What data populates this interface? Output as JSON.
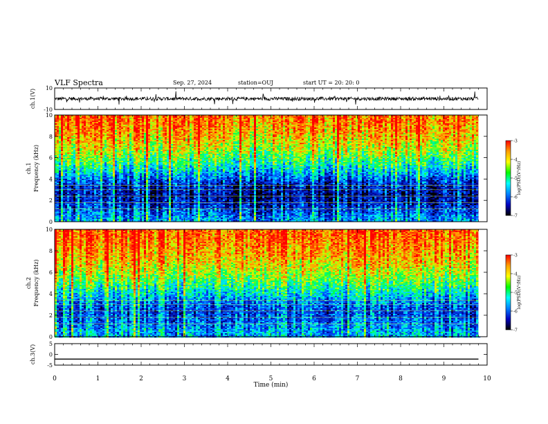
{
  "header": {
    "title": "VLF Spectra",
    "date": "Sep. 27, 2024",
    "station": "station=OUJ",
    "start_ut": "start  UT  =   20: 20: 0"
  },
  "colorbar": {
    "label": "log(PSD)(V²/Hz)",
    "ticks": [
      "-3",
      "-4",
      "-5",
      "-6",
      "-7"
    ],
    "colors": [
      "#ff0000",
      "#ffa000",
      "#ffff00",
      "#00ff00",
      "#00ffff",
      "#0080ff",
      "#0000c0",
      "#000000"
    ]
  },
  "chart_data": [
    {
      "type": "line",
      "name": "ch1-waveform",
      "ylabel": "ch.1(V)",
      "ylim": [
        -10,
        10
      ],
      "yticks": [
        "10",
        "-10"
      ],
      "x": [
        0,
        9.8
      ],
      "baseline": 0,
      "line_color": "#000000"
    },
    {
      "type": "heatmap",
      "name": "ch1-spectrogram",
      "ylabel": "ch.1\nFrequency (kHz)",
      "ylim": [
        0,
        10
      ],
      "yticks": [
        "0",
        "2",
        "4",
        "6",
        "8",
        "10"
      ],
      "xlim": [
        0,
        10
      ],
      "data_end_min": 9.8,
      "zlim": [
        -7,
        -3
      ],
      "profile": [
        {
          "freq_khz": 0.5,
          "log_psd": -5.7
        },
        {
          "freq_khz": 1.5,
          "log_psd": -6.2
        },
        {
          "freq_khz": 2.5,
          "log_psd": -6.5
        },
        {
          "freq_khz": 3.5,
          "log_psd": -6.3
        },
        {
          "freq_khz": 4.5,
          "log_psd": -5.6
        },
        {
          "freq_khz": 5.5,
          "log_psd": -5.0
        },
        {
          "freq_khz": 6.5,
          "log_psd": -4.5
        },
        {
          "freq_khz": 7.5,
          "log_psd": -4.1
        },
        {
          "freq_khz": 8.5,
          "log_psd": -3.8
        },
        {
          "freq_khz": 9.5,
          "log_psd": -3.6
        }
      ]
    },
    {
      "type": "heatmap",
      "name": "ch2-spectrogram",
      "ylabel": "ch.2\nFrequency (kHz)",
      "ylim": [
        0,
        10
      ],
      "yticks": [
        "0",
        "2",
        "4",
        "6",
        "8",
        "10"
      ],
      "xlim": [
        0,
        10
      ],
      "data_end_min": 9.8,
      "zlim": [
        -7,
        -3
      ],
      "profile": [
        {
          "freq_khz": 0.5,
          "log_psd": -5.5
        },
        {
          "freq_khz": 1.5,
          "log_psd": -5.8
        },
        {
          "freq_khz": 2.5,
          "log_psd": -6.0
        },
        {
          "freq_khz": 3.5,
          "log_psd": -5.6
        },
        {
          "freq_khz": 4.5,
          "log_psd": -5.0
        },
        {
          "freq_khz": 5.5,
          "log_psd": -4.5
        },
        {
          "freq_khz": 6.5,
          "log_psd": -4.1
        },
        {
          "freq_khz": 7.5,
          "log_psd": -3.8
        },
        {
          "freq_khz": 8.5,
          "log_psd": -3.6
        },
        {
          "freq_khz": 9.5,
          "log_psd": -3.4
        }
      ]
    },
    {
      "type": "line",
      "name": "ch3-waveform",
      "ylabel": "ch.3(V)",
      "ylim": [
        -5,
        5
      ],
      "yticks": [
        "5",
        "0",
        "-5"
      ],
      "x": [
        0,
        9.8
      ],
      "y_constant": -2.2,
      "line_color": "#000000"
    }
  ],
  "xaxis": {
    "label": "Time (min)",
    "ticks": [
      "0",
      "1",
      "2",
      "3",
      "4",
      "5",
      "6",
      "7",
      "8",
      "9",
      "10"
    ],
    "xlim": [
      0,
      10
    ]
  }
}
